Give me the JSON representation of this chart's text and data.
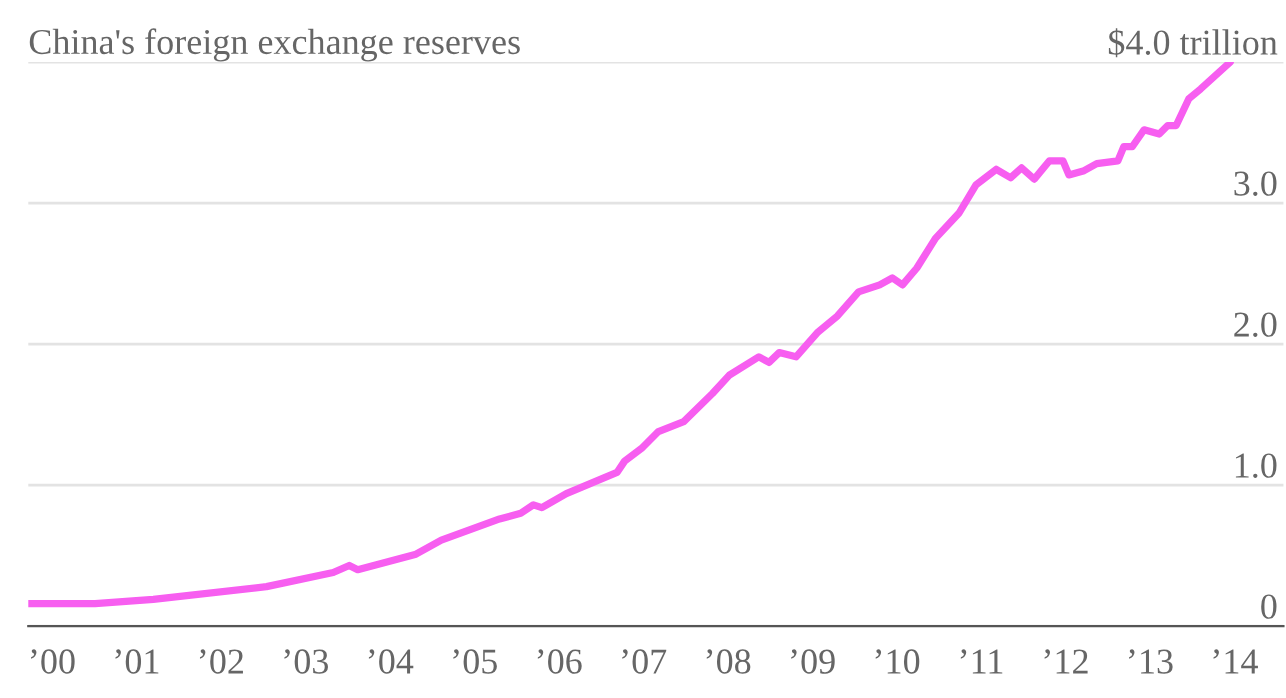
{
  "chart_data": {
    "type": "line",
    "title": "China's foreign exchange reserves",
    "x": [
      1999.72,
      2000.51,
      2001.2,
      2002.54,
      2003.33,
      2003.52,
      2003.62,
      2004.31,
      2004.61,
      2005.3,
      2005.55,
      2005.7,
      2005.8,
      2006.09,
      2006.69,
      2006.78,
      2006.98,
      2007.18,
      2007.48,
      2007.82,
      2008.02,
      2008.37,
      2008.49,
      2008.61,
      2008.81,
      2009.06,
      2009.3,
      2009.55,
      2009.8,
      2009.95,
      2010.07,
      2010.24,
      2010.46,
      2010.74,
      2010.94,
      2011.18,
      2011.35,
      2011.48,
      2011.63,
      2011.81,
      2011.97,
      2012.04,
      2012.22,
      2012.37,
      2012.62,
      2012.69,
      2012.79,
      2012.93,
      2013.11,
      2013.21,
      2013.31,
      2013.46,
      2013.6,
      2013.95
    ],
    "series": [
      {
        "color": "#f75ef0",
        "values": [
          0.16,
          0.16,
          0.19,
          0.28,
          0.38,
          0.43,
          0.4,
          0.51,
          0.61,
          0.76,
          0.8,
          0.86,
          0.84,
          0.94,
          1.09,
          1.17,
          1.26,
          1.38,
          1.45,
          1.65,
          1.78,
          1.91,
          1.87,
          1.94,
          1.91,
          2.08,
          2.2,
          2.37,
          2.42,
          2.47,
          2.42,
          2.54,
          2.75,
          2.93,
          3.13,
          3.24,
          3.18,
          3.25,
          3.17,
          3.3,
          3.3,
          3.2,
          3.23,
          3.28,
          3.3,
          3.4,
          3.4,
          3.52,
          3.49,
          3.55,
          3.55,
          3.74,
          3.81,
          4.0
        ]
      }
    ],
    "xlim": [
      1999.72,
      2014.58
    ],
    "xticks": [
      {
        "value": 2000,
        "label": "’00"
      },
      {
        "value": 2001,
        "label": "’01"
      },
      {
        "value": 2002,
        "label": "’02"
      },
      {
        "value": 2003,
        "label": "’03"
      },
      {
        "value": 2004,
        "label": "’04"
      },
      {
        "value": 2005,
        "label": "’05"
      },
      {
        "value": 2006,
        "label": "’06"
      },
      {
        "value": 2007,
        "label": "’07"
      },
      {
        "value": 2008,
        "label": "’08"
      },
      {
        "value": 2009,
        "label": "’09"
      },
      {
        "value": 2010,
        "label": "’10"
      },
      {
        "value": 2011,
        "label": "’11"
      },
      {
        "value": 2012,
        "label": "’12"
      },
      {
        "value": 2013,
        "label": "’13"
      },
      {
        "value": 2014,
        "label": "’14"
      }
    ],
    "ylim": [
      0,
      4.0
    ],
    "yticks": [
      0,
      {
        "value": 1.0,
        "label": "1.0"
      },
      {
        "value": 2.0,
        "label": "2.0"
      },
      {
        "value": 3.0,
        "label": "3.0"
      },
      {
        "value": 4.0,
        "label": "$4.0 trillion"
      }
    ],
    "grid": "y"
  }
}
